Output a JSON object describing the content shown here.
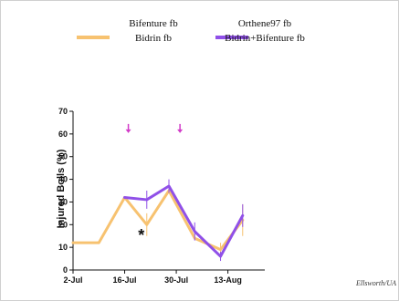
{
  "chart_data": {
    "type": "line",
    "xlabel": "",
    "ylabel": "Injured Bolls (%)",
    "ylim": [
      0,
      70
    ],
    "yticks": [
      0,
      10,
      20,
      30,
      40,
      50,
      60,
      70
    ],
    "xticks": [
      {
        "label": "2-Jul",
        "x": 0
      },
      {
        "label": "16-Jul",
        "x": 14
      },
      {
        "label": "30-Jul",
        "x": 28
      },
      {
        "label": "13-Aug",
        "x": 42
      }
    ],
    "xlim": [
      0,
      52
    ],
    "legend_placement": "top",
    "legend": [
      {
        "label": "Bifenture fb",
        "color": "",
        "swatch": false
      },
      {
        "label": "Orthene97 fb",
        "color": "",
        "swatch": false
      },
      {
        "label": "Bidrin fb",
        "color": "#F7C270",
        "swatch": true
      },
      {
        "label": "Bidrin+Bifenture fb",
        "color": "#9050E8",
        "swatch": true
      }
    ],
    "series": [
      {
        "color": "#F7C270",
        "x": [
          0,
          7,
          14,
          20,
          26,
          33,
          40,
          46
        ],
        "y": [
          12,
          12,
          32,
          20,
          35,
          14,
          9,
          22
        ],
        "err": [
          0,
          0,
          0,
          5,
          0,
          0,
          3,
          7
        ]
      },
      {
        "color": "#9050E8",
        "x": [
          14,
          20,
          26,
          33,
          40,
          46
        ],
        "y": [
          32,
          31,
          37,
          17,
          6,
          24
        ],
        "err": [
          0,
          4,
          3,
          4,
          2,
          5
        ]
      }
    ],
    "arrows": [
      {
        "x": 15,
        "y": 62,
        "color": "#D23CC8"
      },
      {
        "x": 29,
        "y": 62,
        "color": "#D23CC8"
      }
    ],
    "annotations": [
      {
        "text": "*",
        "x": 18.5,
        "y": 16
      }
    ],
    "credit": "Ellsworth/UA"
  }
}
